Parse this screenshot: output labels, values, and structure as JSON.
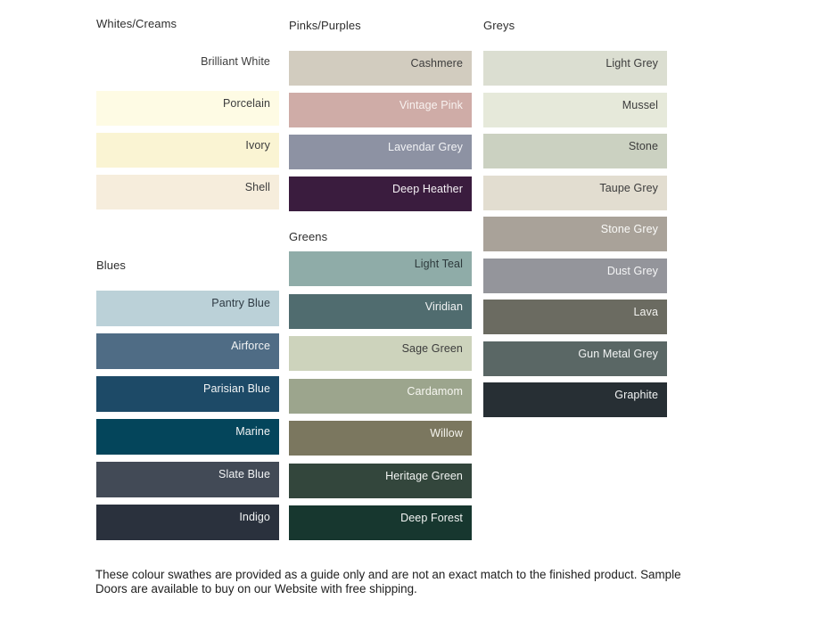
{
  "page": {
    "background": "#ffffff"
  },
  "sections": {
    "whites": {
      "title": "Whites/Creams",
      "swatches": [
        {
          "label": "Brilliant White",
          "bg": "#FFFFFF",
          "fg": "#3C3C3C"
        },
        {
          "label": "Porcelain",
          "bg": "#FEFBE4",
          "fg": "#3C3C3C"
        },
        {
          "label": "Ivory",
          "bg": "#FAF4D3",
          "fg": "#3C3C3C"
        },
        {
          "label": "Shell",
          "bg": "#F6EDDC",
          "fg": "#3C3C3C"
        }
      ]
    },
    "blues": {
      "title": "Blues",
      "swatches": [
        {
          "label": "Pantry Blue",
          "bg": "#BBD1D8",
          "fg": "#2E3A43"
        },
        {
          "label": "Airforce",
          "bg": "#4F6C85",
          "fg": "#F2F4F5"
        },
        {
          "label": "Parisian Blue",
          "bg": "#1D4A67",
          "fg": "#F2F4F5"
        },
        {
          "label": "Marine",
          "bg": "#04455B",
          "fg": "#F2F4F5"
        },
        {
          "label": "Slate Blue",
          "bg": "#424A56",
          "fg": "#F2F4F5"
        },
        {
          "label": "Indigo",
          "bg": "#2A313D",
          "fg": "#F2F4F5"
        }
      ]
    },
    "pinks": {
      "title": "Pinks/Purples",
      "swatches": [
        {
          "label": "Cashmere",
          "bg": "#D2CCBF",
          "fg": "#3C3C3C"
        },
        {
          "label": "Vintage Pink",
          "bg": "#CFACA7",
          "fg": "#F8F2F0"
        },
        {
          "label": "Lavendar Grey",
          "bg": "#8D92A3",
          "fg": "#F2F3F6"
        },
        {
          "label": "Deep Heather",
          "bg": "#3A1C3E",
          "fg": "#F4F0F4"
        }
      ]
    },
    "greens": {
      "title": "Greens",
      "swatches": [
        {
          "label": "Light Teal",
          "bg": "#8FACA8",
          "fg": "#2E3A3C"
        },
        {
          "label": "Viridian",
          "bg": "#506C6F",
          "fg": "#F2F4F4"
        },
        {
          "label": "Sage Green",
          "bg": "#CDD3BC",
          "fg": "#3C3C3C"
        },
        {
          "label": "Cardamom",
          "bg": "#9CA58D",
          "fg": "#F6F6F0"
        },
        {
          "label": "Willow",
          "bg": "#7B775F",
          "fg": "#F5F4EE"
        },
        {
          "label": "Heritage Green",
          "bg": "#33463C",
          "fg": "#F2F4F2"
        },
        {
          "label": "Deep Forest",
          "bg": "#17372F",
          "fg": "#F2F4F3"
        }
      ]
    },
    "greys": {
      "title": "Greys",
      "swatches": [
        {
          "label": "Light Grey",
          "bg": "#DBDED1",
          "fg": "#3C3C3C"
        },
        {
          "label": "Mussel",
          "bg": "#E6E9DA",
          "fg": "#3C3C3C"
        },
        {
          "label": "Stone",
          "bg": "#CBD1C1",
          "fg": "#3C3C3C"
        },
        {
          "label": "Taupe Grey",
          "bg": "#E2DDD0",
          "fg": "#3C3C3C"
        },
        {
          "label": "Stone Grey",
          "bg": "#A9A299",
          "fg": "#FAFAF8"
        },
        {
          "label": "Dust Grey",
          "bg": "#94959B",
          "fg": "#F5F5F6"
        },
        {
          "label": "Lava",
          "bg": "#6B6B61",
          "fg": "#F2F2EF"
        },
        {
          "label": "Gun Metal Grey",
          "bg": "#5A6765",
          "fg": "#F2F4F4"
        },
        {
          "label": "Graphite",
          "bg": "#272F34",
          "fg": "#F2F4F4"
        }
      ]
    }
  },
  "footer": {
    "text": "These colour swathes are provided as a guide only and are not an exact match to the finished product.  Sample Doors are available to buy on our Website with free shipping."
  }
}
